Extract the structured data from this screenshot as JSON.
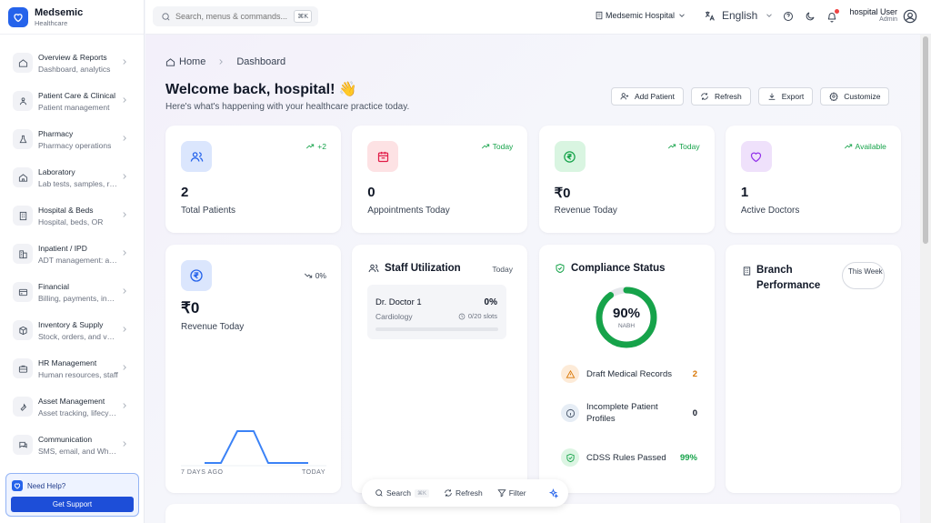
{
  "brand": {
    "name": "Medsemic",
    "sub": "Healthcare"
  },
  "sidebar": {
    "items": [
      {
        "title": "Overview & Reports",
        "sub": "Dashboard, analytics",
        "icon": "home-icon"
      },
      {
        "title": "Patient Care & Clinical",
        "sub": "Patient management",
        "icon": "patient-care-icon"
      },
      {
        "title": "Pharmacy",
        "sub": "Pharmacy operations",
        "icon": "flask-icon"
      },
      {
        "title": "Laboratory",
        "sub": "Lab tests, samples, results",
        "icon": "lab-icon"
      },
      {
        "title": "Hospital & Beds",
        "sub": "Hospital, beds, OR",
        "icon": "building-icon"
      },
      {
        "title": "Inpatient / IPD",
        "sub": "ADT management: admissions",
        "icon": "inpatient-icon"
      },
      {
        "title": "Financial",
        "sub": "Billing, payments, insurance",
        "icon": "card-icon"
      },
      {
        "title": "Inventory & Supply",
        "sub": "Stock, orders, and vendors",
        "icon": "box-icon"
      },
      {
        "title": "HR Management",
        "sub": "Human resources, staff",
        "icon": "briefcase-icon"
      },
      {
        "title": "Asset Management",
        "sub": "Asset tracking, lifecycle",
        "icon": "wrench-icon"
      },
      {
        "title": "Communication",
        "sub": "SMS, email, and WhatsApp",
        "icon": "chat-icon"
      }
    ]
  },
  "help": {
    "title": "Need Help?",
    "button": "Get Support"
  },
  "topbar": {
    "search_placeholder": "Search, menus & commands...",
    "search_kbd": "⌘K",
    "hospital": "Medsemic Hospital",
    "language": "English",
    "user_name": "hospital User",
    "user_role": "Admin"
  },
  "breadcrumb": {
    "home": "Home",
    "current": "Dashboard"
  },
  "welcome": {
    "title": "Welcome back, hospital! 👋",
    "subtitle": "Here's what's happening with your healthcare practice today."
  },
  "actions": {
    "add_patient": "Add Patient",
    "refresh": "Refresh",
    "export": "Export",
    "customize": "Customize"
  },
  "stats": [
    {
      "value": "2",
      "label": "Total Patients",
      "trend": "+2",
      "icon": "users-icon",
      "color": "#2563eb",
      "bg": "#dbe6fd"
    },
    {
      "value": "0",
      "label": "Appointments Today",
      "trend": "Today",
      "icon": "calendar-icon",
      "color": "#e11d48",
      "bg": "#fde2e4"
    },
    {
      "value": "₹0",
      "label": "Revenue Today",
      "trend": "Today",
      "icon": "rupee-icon",
      "color": "#16a34a",
      "bg": "#d9f5e1"
    },
    {
      "value": "1",
      "label": "Active Doctors",
      "trend": "Available",
      "icon": "heart-icon",
      "color": "#9333ea",
      "bg": "#efe1fb"
    }
  ],
  "revenue": {
    "value": "₹0",
    "label": "Revenue Today",
    "trend": "0%",
    "x_start_label": "7 DAYS AGO",
    "x_end_label": "TODAY"
  },
  "staff": {
    "title": "Staff Utilization",
    "period": "Today",
    "doctor": "Dr. Doctor 1",
    "dept": "Cardiology",
    "percent": "0%",
    "slots": "0/20 slots"
  },
  "compliance": {
    "title": "Compliance Status",
    "score": "90%",
    "score_label": "NABH",
    "score_fraction": 0.9,
    "rows": [
      {
        "label": "Draft Medical Records",
        "value": "2",
        "color": "#d97706",
        "bg": "#fdebd8",
        "icon": "warning-icon"
      },
      {
        "label": "Incomplete Patient Profiles",
        "value": "0",
        "color": "#475569",
        "bg": "#e6edf5",
        "icon": "info-icon"
      },
      {
        "label": "CDSS Rules Passed",
        "value": "99%",
        "color": "#16a34a",
        "bg": "#dcf5e3",
        "icon": "shield-check-icon"
      }
    ]
  },
  "branch": {
    "title": "Branch Performance",
    "period": "This Week"
  },
  "floatbar": {
    "search": "Search",
    "kbd": "⌘K",
    "refresh": "Refresh",
    "filter": "Filter"
  },
  "colors": {
    "accent": "#2563eb",
    "success": "#16a34a"
  }
}
